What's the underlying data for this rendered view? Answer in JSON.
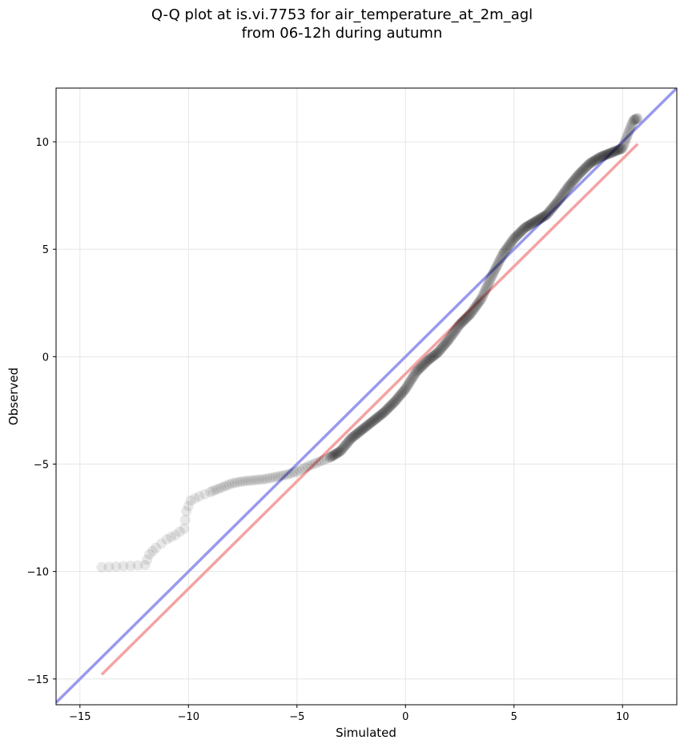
{
  "figure": {
    "title_line1": "Q-Q plot at is.vi.7753 for air_temperature_at_2m_agl",
    "title_line2": "from 06-12h during autumn"
  },
  "chart_data": {
    "type": "scatter",
    "title": "Q-Q plot at is.vi.7753 for air_temperature_at_2m_agl\nfrom 06-12h during autumn",
    "xlabel": "Simulated",
    "ylabel": "Observed",
    "xlim": [
      -16.1,
      12.5
    ],
    "ylim": [
      -16.2,
      12.5
    ],
    "xticks": [
      -15,
      -10,
      -5,
      0,
      5,
      10
    ],
    "yticks": [
      -15,
      -10,
      -5,
      0,
      5,
      10
    ],
    "xtick_labels": [
      "−15",
      "−10",
      "−5",
      "0",
      "5",
      "10"
    ],
    "ytick_labels": [
      "−15",
      "−10",
      "−5",
      "0",
      "5",
      "10"
    ],
    "grid": true,
    "point_color": "#000000",
    "reference_lines": [
      {
        "color": "#9999ee",
        "x": [
          -16.1,
          12.5
        ],
        "y": [
          -16.1,
          12.5
        ]
      },
      {
        "color": "#f4a3a3",
        "x": [
          -14.0,
          10.7
        ],
        "y": [
          -14.8,
          9.9
        ]
      }
    ],
    "quantile_curve": {
      "x": [
        -14.0,
        -12.0,
        -11.8,
        -11.5,
        -11.0,
        -10.6,
        -10.2,
        -10.1,
        -9.9,
        -9.5,
        -9.0,
        -8.5,
        -8.0,
        -7.5,
        -7.0,
        -6.5,
        -6.0,
        -5.5,
        -5.0,
        -4.5,
        -4.0,
        -3.5,
        -3.0,
        -2.5,
        -2.0,
        -1.5,
        -1.0,
        -0.5,
        0.0,
        0.5,
        1.0,
        1.5,
        2.0,
        2.5,
        3.0,
        3.5,
        4.0,
        4.5,
        5.0,
        5.5,
        6.0,
        6.5,
        7.0,
        7.5,
        8.0,
        8.5,
        9.0,
        9.5,
        10.0,
        10.3,
        10.5,
        10.7
      ],
      "y": [
        -9.8,
        -9.7,
        -9.2,
        -8.9,
        -8.5,
        -8.3,
        -8.0,
        -7.2,
        -6.7,
        -6.5,
        -6.3,
        -6.1,
        -5.9,
        -5.8,
        -5.75,
        -5.7,
        -5.6,
        -5.5,
        -5.35,
        -5.1,
        -4.9,
        -4.7,
        -4.4,
        -3.8,
        -3.4,
        -3.0,
        -2.6,
        -2.1,
        -1.5,
        -0.7,
        -0.2,
        0.2,
        0.8,
        1.5,
        2.0,
        2.7,
        3.8,
        4.8,
        5.5,
        6.0,
        6.3,
        6.6,
        7.2,
        7.9,
        8.5,
        9.0,
        9.3,
        9.5,
        9.7,
        10.5,
        11.0,
        11.1
      ]
    }
  }
}
